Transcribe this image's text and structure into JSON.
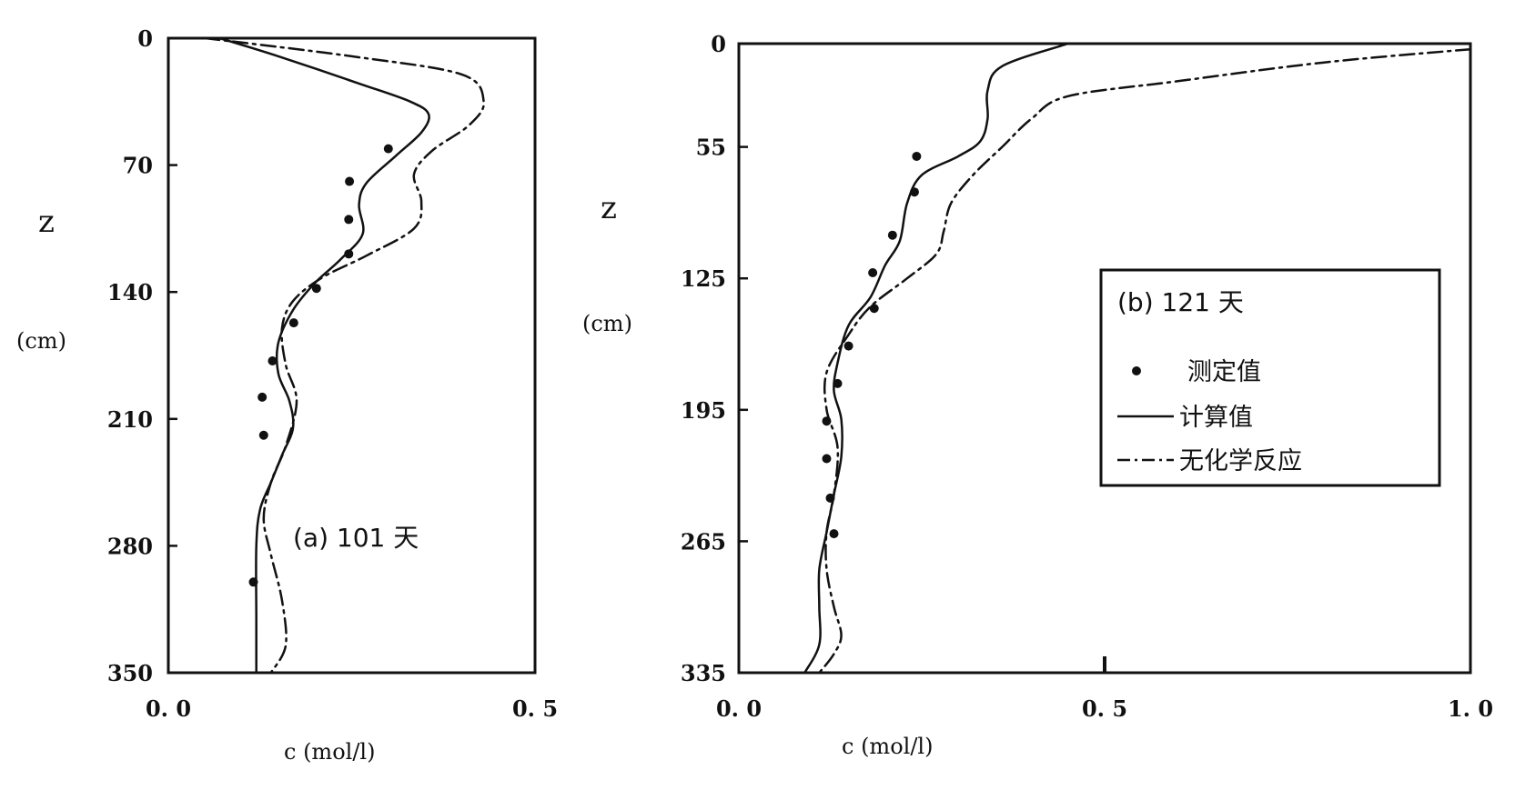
{
  "chart_data": [
    {
      "type": "line",
      "annotation": "(a) 101  天",
      "xlabel": "c  (mol/l)",
      "ylabel_symbol": "z",
      "ylabel_unit": "(cm)",
      "xlim": [
        0,
        0.5
      ],
      "ylim": [
        0,
        350
      ],
      "y_inverted": true,
      "xticks": [
        "0. 0",
        "0. 5"
      ],
      "yticks": [
        0,
        70,
        140,
        210,
        280,
        350
      ],
      "series": [
        {
          "key": "measured",
          "style": "points",
          "x": [
            0.3,
            0.247,
            0.246,
            0.246,
            0.202,
            0.171,
            0.142,
            0.128,
            0.13,
            0.116
          ],
          "y": [
            61,
            79,
            100,
            119,
            138,
            157,
            178,
            198,
            219,
            300
          ]
        },
        {
          "key": "computed",
          "style": "solid",
          "x": [
            0.07,
            0.15,
            0.26,
            0.33,
            0.355,
            0.345,
            0.31,
            0.27,
            0.26,
            0.265,
            0.235,
            0.2,
            0.17,
            0.15,
            0.15,
            0.165,
            0.17,
            0.155,
            0.14,
            0.125,
            0.12,
            0.12,
            0.12
          ],
          "y": [
            0,
            10,
            25,
            35,
            42,
            52,
            65,
            80,
            92,
            108,
            122,
            135,
            150,
            168,
            185,
            200,
            215,
            230,
            245,
            260,
            280,
            320,
            350
          ]
        },
        {
          "key": "no_reaction",
          "style": "dashdot",
          "x": [
            0.05,
            0.25,
            0.4,
            0.43,
            0.41,
            0.36,
            0.335,
            0.345,
            0.335,
            0.27,
            0.21,
            0.17,
            0.155,
            0.16,
            0.175,
            0.16,
            0.14,
            0.13,
            0.14,
            0.155,
            0.16,
            0.14
          ],
          "y": [
            0,
            10,
            20,
            35,
            48,
            62,
            75,
            90,
            105,
            120,
            132,
            145,
            160,
            180,
            200,
            225,
            245,
            265,
            285,
            310,
            335,
            350
          ]
        }
      ]
    },
    {
      "type": "line",
      "annotation": "(b) 121  天",
      "xlabel": "c  (mol/l)",
      "ylabel_symbol": "z",
      "ylabel_unit": "(cm)",
      "xlim": [
        0,
        1.0
      ],
      "ylim": [
        0,
        335
      ],
      "y_inverted": true,
      "xticks": [
        "0. 0",
        "0. 5",
        "1. 0"
      ],
      "yticks": [
        0,
        55,
        125,
        195,
        265,
        335
      ],
      "series": [
        {
          "key": "measured",
          "style": "points",
          "x": [
            0.243,
            0.24,
            0.21,
            0.183,
            0.185,
            0.15,
            0.135,
            0.12,
            0.12,
            0.125,
            0.13
          ],
          "y": [
            60,
            79,
            102,
            122,
            141,
            161,
            181,
            201,
            221,
            242,
            261
          ]
        },
        {
          "key": "computed",
          "style": "solid",
          "x": [
            0.45,
            0.36,
            0.34,
            0.34,
            0.33,
            0.3,
            0.25,
            0.23,
            0.22,
            0.2,
            0.18,
            0.15,
            0.135,
            0.13,
            0.14,
            0.14,
            0.13,
            0.12,
            0.11,
            0.11,
            0.11,
            0.09
          ],
          "y": [
            0,
            12,
            25,
            40,
            52,
            60,
            70,
            85,
            105,
            118,
            135,
            150,
            170,
            185,
            200,
            220,
            240,
            260,
            280,
            300,
            320,
            335
          ]
        },
        {
          "key": "no_reaction",
          "style": "dashdot",
          "x": [
            1.0,
            0.8,
            0.6,
            0.45,
            0.4,
            0.36,
            0.32,
            0.29,
            0.28,
            0.27,
            0.23,
            0.18,
            0.15,
            0.12,
            0.12,
            0.135,
            0.13,
            0.12,
            0.12,
            0.13,
            0.14,
            0.13,
            0.11
          ],
          "y": [
            3,
            10,
            20,
            28,
            40,
            55,
            70,
            85,
            100,
            112,
            125,
            140,
            155,
            175,
            195,
            215,
            240,
            260,
            280,
            300,
            315,
            325,
            335
          ]
        }
      ]
    }
  ],
  "legend": {
    "title": "(b) 121  天",
    "items": [
      {
        "key": "measured",
        "label": "测定值"
      },
      {
        "key": "computed",
        "label": "计算值"
      },
      {
        "key": "no_reaction",
        "label": "无化学反应"
      }
    ]
  }
}
